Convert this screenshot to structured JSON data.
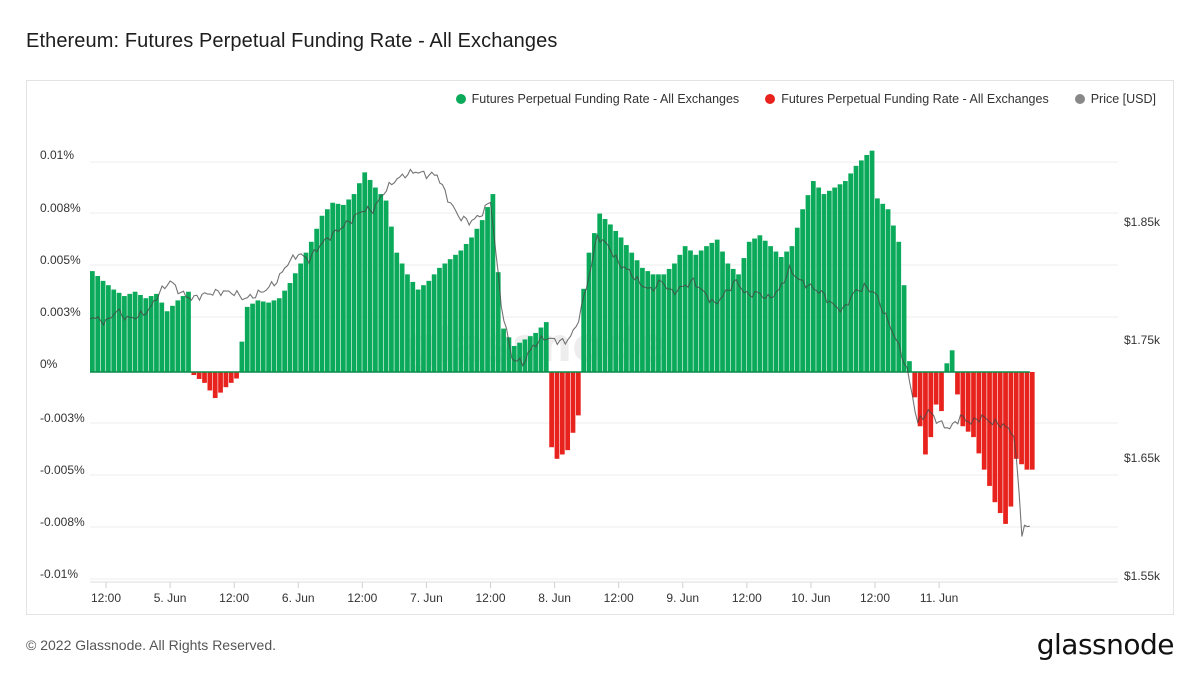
{
  "title": "Ethereum: Futures Perpetual Funding Rate - All Exchanges",
  "footer": "© 2022 Glassnode. All Rights Reserved.",
  "logo": "glassnode",
  "watermark": "glassnode",
  "legend": [
    {
      "label": "Futures Perpetual Funding Rate - All Exchanges",
      "color": "#0aaa5a"
    },
    {
      "label": "Futures Perpetual Funding Rate - All Exchanges",
      "color": "#e8221c"
    },
    {
      "label": "Price [USD]",
      "color": "#888888"
    }
  ],
  "chart_data": {
    "type": "bar",
    "title": "Ethereum: Futures Perpetual Funding Rate - All Exchanges",
    "x_ticks": [
      "12:00",
      "5. Jun",
      "12:00",
      "6. Jun",
      "12:00",
      "7. Jun",
      "12:00",
      "8. Jun",
      "12:00",
      "9. Jun",
      "12:00",
      "10. Jun",
      "12:00",
      "11. Jun"
    ],
    "x_range_hours": [
      -15,
      177.5
    ],
    "y_left_ticks": [
      "0.01%",
      "0.008%",
      "0.005%",
      "0.003%",
      "0%",
      "-0.003%",
      "-0.005%",
      "-0.008%",
      "-0.01%"
    ],
    "y_left_range": [
      -0.0001,
      0.0001
    ],
    "y_right_ticks": [
      "$1.85k",
      "$1.75k",
      "$1.65k",
      "$1.55k"
    ],
    "y_right_range": [
      1550,
      1900
    ],
    "grid": true,
    "legend_position": "top-right",
    "colors": {
      "positive": "#0aaa5a",
      "negative": "#e8221c",
      "price": "#888888"
    },
    "funding_keypoints": [
      [
        -15,
        4.65e-05
      ],
      [
        -13,
        4.2e-05
      ],
      [
        -11,
        3.8e-05
      ],
      [
        -9,
        3.5e-05
      ],
      [
        -7,
        3.7e-05
      ],
      [
        -5,
        3.4e-05
      ],
      [
        -3,
        3.6e-05
      ],
      [
        -1,
        2.8e-05
      ],
      [
        1,
        3.3e-05
      ],
      [
        3,
        3.7e-05
      ],
      [
        3.5,
        -5e-07
      ],
      [
        6,
        -5e-06
      ],
      [
        8,
        -1.2e-05
      ],
      [
        10,
        -7e-06
      ],
      [
        12,
        -3e-06
      ],
      [
        12.5,
        6e-06
      ],
      [
        14,
        3e-05
      ],
      [
        16,
        3.3e-05
      ],
      [
        18,
        3.2e-05
      ],
      [
        20,
        3.4e-05
      ],
      [
        22,
        4.1e-05
      ],
      [
        24,
        5e-05
      ],
      [
        26,
        6e-05
      ],
      [
        28,
        7.2e-05
      ],
      [
        30,
        7.8e-05
      ],
      [
        32,
        7.7e-05
      ],
      [
        34,
        8.2e-05
      ],
      [
        36,
        9.2e-05
      ],
      [
        38,
        8.5e-05
      ],
      [
        40,
        7.9e-05
      ],
      [
        42,
        5.5e-05
      ],
      [
        44,
        4.5e-05
      ],
      [
        46,
        3.8e-05
      ],
      [
        48,
        4.2e-05
      ],
      [
        50,
        4.8e-05
      ],
      [
        52,
        5.2e-05
      ],
      [
        54,
        5.6e-05
      ],
      [
        56,
        6.2e-05
      ],
      [
        58,
        7e-05
      ],
      [
        60,
        8.2e-05
      ],
      [
        61,
        4.6e-05
      ],
      [
        62,
        2e-05
      ],
      [
        64,
        1.2e-05
      ],
      [
        66,
        1.5e-05
      ],
      [
        68,
        1.8e-05
      ],
      [
        70,
        2.3e-05
      ],
      [
        70.5,
        -3.2e-05
      ],
      [
        72,
        -4e-05
      ],
      [
        74,
        -3.6e-05
      ],
      [
        76,
        -2e-05
      ],
      [
        76.5,
        3e-05
      ],
      [
        78,
        5.5e-05
      ],
      [
        80,
        7.3e-05
      ],
      [
        82,
        6.8e-05
      ],
      [
        84,
        6.2e-05
      ],
      [
        86,
        5.5e-05
      ],
      [
        88,
        4.8e-05
      ],
      [
        90,
        4.5e-05
      ],
      [
        92,
        4.5e-05
      ],
      [
        94,
        5e-05
      ],
      [
        96,
        5.8e-05
      ],
      [
        98,
        5.4e-05
      ],
      [
        100,
        5.8e-05
      ],
      [
        102,
        6.1e-05
      ],
      [
        104,
        5e-05
      ],
      [
        106,
        4.5e-05
      ],
      [
        108,
        6e-05
      ],
      [
        110,
        6.3e-05
      ],
      [
        112,
        5.8e-05
      ],
      [
        114,
        5.3e-05
      ],
      [
        116,
        5.8e-05
      ],
      [
        118,
        7.5e-05
      ],
      [
        120,
        8.8e-05
      ],
      [
        122,
        8.2e-05
      ],
      [
        124,
        8.5e-05
      ],
      [
        126,
        8.8e-05
      ],
      [
        128,
        9.5e-05
      ],
      [
        130,
        0.0001
      ],
      [
        131,
        0.000102
      ],
      [
        132,
        8e-05
      ],
      [
        134,
        7.5e-05
      ],
      [
        136,
        6e-05
      ],
      [
        137.5,
        3e-05
      ],
      [
        138,
        5e-06
      ],
      [
        138.5,
        -5e-06
      ],
      [
        140,
        -2.5e-05
      ],
      [
        141,
        -3.8e-05
      ],
      [
        142,
        -3e-05
      ],
      [
        143,
        -1.5e-05
      ],
      [
        144,
        -1.8e-05
      ],
      [
        145,
        4e-06
      ],
      [
        146,
        1e-05
      ],
      [
        146.5,
        -3e-06
      ],
      [
        148,
        -2.5e-05
      ],
      [
        150,
        -3e-05
      ],
      [
        152,
        -4.5e-05
      ],
      [
        154,
        -6e-05
      ],
      [
        156,
        -7e-05
      ],
      [
        157,
        -6.2e-05
      ],
      [
        158,
        -4e-05
      ],
      [
        160,
        -4.5e-05
      ],
      [
        161,
        -4.5e-05
      ]
    ],
    "price_keypoints": [
      [
        -15,
        1770
      ],
      [
        -12,
        1765
      ],
      [
        -10,
        1775
      ],
      [
        -8,
        1768
      ],
      [
        -6,
        1770
      ],
      [
        -4,
        1775
      ],
      [
        -2,
        1790
      ],
      [
        0,
        1800
      ],
      [
        2,
        1790
      ],
      [
        4,
        1785
      ],
      [
        6,
        1788
      ],
      [
        8,
        1790
      ],
      [
        10,
        1791
      ],
      [
        12,
        1790
      ],
      [
        14,
        1785
      ],
      [
        16,
        1788
      ],
      [
        18,
        1793
      ],
      [
        20,
        1800
      ],
      [
        22,
        1815
      ],
      [
        24,
        1823
      ],
      [
        26,
        1818
      ],
      [
        28,
        1830
      ],
      [
        30,
        1838
      ],
      [
        32,
        1845
      ],
      [
        34,
        1852
      ],
      [
        36,
        1860
      ],
      [
        38,
        1860
      ],
      [
        40,
        1875
      ],
      [
        42,
        1885
      ],
      [
        44,
        1890
      ],
      [
        46,
        1893
      ],
      [
        48,
        1890
      ],
      [
        50,
        1890
      ],
      [
        52,
        1870
      ],
      [
        54,
        1855
      ],
      [
        56,
        1850
      ],
      [
        58,
        1855
      ],
      [
        60,
        1868
      ],
      [
        62,
        1780
      ],
      [
        64,
        1735
      ],
      [
        66,
        1730
      ],
      [
        68,
        1745
      ],
      [
        70,
        1752
      ],
      [
        72,
        1750
      ],
      [
        74,
        1748
      ],
      [
        76,
        1760
      ],
      [
        78,
        1795
      ],
      [
        80,
        1838
      ],
      [
        82,
        1830
      ],
      [
        84,
        1815
      ],
      [
        86,
        1808
      ],
      [
        88,
        1798
      ],
      [
        90,
        1792
      ],
      [
        92,
        1800
      ],
      [
        94,
        1790
      ],
      [
        96,
        1795
      ],
      [
        98,
        1800
      ],
      [
        100,
        1790
      ],
      [
        102,
        1780
      ],
      [
        104,
        1790
      ],
      [
        106,
        1800
      ],
      [
        108,
        1788
      ],
      [
        110,
        1790
      ],
      [
        112,
        1785
      ],
      [
        114,
        1792
      ],
      [
        116,
        1810
      ],
      [
        118,
        1800
      ],
      [
        120,
        1795
      ],
      [
        122,
        1790
      ],
      [
        124,
        1780
      ],
      [
        126,
        1775
      ],
      [
        128,
        1790
      ],
      [
        130,
        1795
      ],
      [
        132,
        1790
      ],
      [
        134,
        1770
      ],
      [
        136,
        1750
      ],
      [
        138,
        1725
      ],
      [
        140,
        1680
      ],
      [
        142,
        1690
      ],
      [
        144,
        1680
      ],
      [
        146,
        1675
      ],
      [
        148,
        1685
      ],
      [
        150,
        1680
      ],
      [
        152,
        1685
      ],
      [
        154,
        1680
      ],
      [
        156,
        1678
      ],
      [
        158,
        1670
      ],
      [
        159,
        1620
      ],
      [
        159.5,
        1585
      ],
      [
        160,
        1593
      ],
      [
        161,
        1590
      ]
    ]
  }
}
